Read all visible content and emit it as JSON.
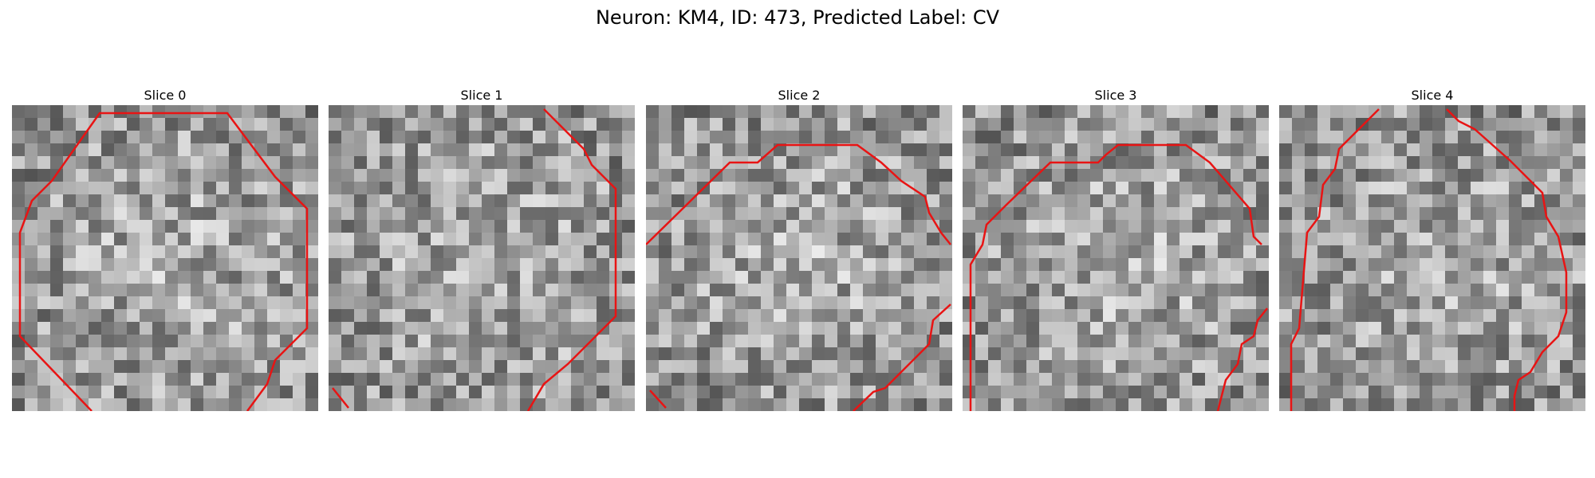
{
  "figure": {
    "title": "Neuron: KM4, ID: 473, Predicted Label: CV"
  },
  "slices": [
    {
      "label": "Slice 0",
      "seed": 11,
      "contour_color": "#e81414"
    },
    {
      "label": "Slice 1",
      "seed": 23,
      "contour_color": "#e81414"
    },
    {
      "label": "Slice 2",
      "seed": 37,
      "contour_color": "#e81414"
    },
    {
      "label": "Slice 3",
      "seed": 41,
      "contour_color": "#e81414"
    },
    {
      "label": "Slice 4",
      "seed": 59,
      "contour_color": "#e81414"
    }
  ]
}
